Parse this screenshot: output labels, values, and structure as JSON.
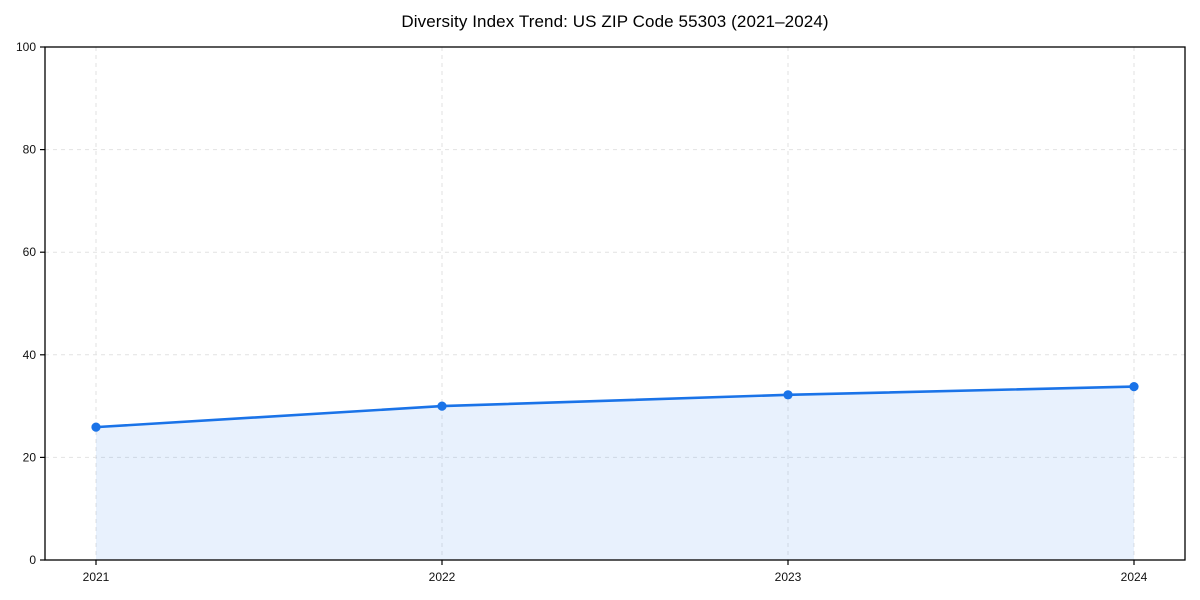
{
  "figure": {
    "title": "Diversity Index Trend: US ZIP Code 55303 (2021–2024)"
  },
  "chart_data": {
    "type": "area",
    "title": "Diversity Index Trend: US ZIP Code 55303 (2021–2024)",
    "x": [
      2021,
      2022,
      2023,
      2024
    ],
    "xtick_labels": [
      "2021",
      "2022",
      "2023",
      "2024"
    ],
    "series": [
      {
        "name": "Diversity Index",
        "values": [
          25.9,
          30.0,
          32.2,
          33.8
        ]
      }
    ],
    "xlabel": "",
    "ylabel": "",
    "ylim": [
      0,
      100
    ],
    "yticks": [
      0,
      20,
      40,
      60,
      80,
      100
    ],
    "grid": true,
    "legend": "none",
    "colors": {
      "line": "#1a73e8",
      "marker": "#1a73e8",
      "fill": "rgba(26,115,232,0.10)",
      "grid": "#e2e2e2",
      "axis": "#000000",
      "tick_label": "#111111",
      "background": "#ffffff"
    }
  }
}
